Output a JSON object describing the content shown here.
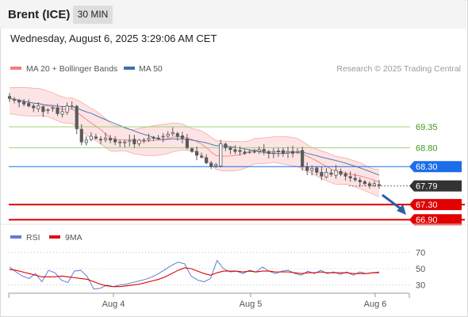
{
  "instrument": "Brent (ICE)",
  "timeframe": "30 MIN",
  "datetime": "Wednesday, August 6, 2025 3:29:06 AM CET",
  "legend": {
    "bollinger": "MA 20 + Bollinger Bands",
    "ma50": "MA 50",
    "credit": "Research © 2025 Trading Central",
    "rsi": "RSI",
    "rsi_ma": "9MA"
  },
  "colors": {
    "candle": "#5a5a5a",
    "bollinger": "#f08080",
    "bollinger_fill": "#fde4e4",
    "ma50": "#3e6fb0",
    "resistance": "#9dd27a",
    "support": "#e00000",
    "pivot": "#1b6ee8",
    "current": "#333333",
    "rsi": "#5b7fd0",
    "rsi_ma": "#e00000",
    "arrow": "#2b5fa5"
  },
  "chart_data": [
    {
      "type": "candlestick",
      "title": "Brent (ICE)",
      "x_tick_labels": [
        "Aug 4",
        "Aug 5",
        "Aug 6"
      ],
      "y_range": [
        66.8,
        70.5
      ],
      "candle_closes": [
        70.1,
        70.05,
        70.0,
        69.95,
        69.9,
        69.85,
        69.9,
        69.75,
        69.8,
        69.85,
        69.7,
        69.75,
        69.9,
        69.9,
        69.3,
        68.95,
        69.0,
        69.1,
        69.05,
        69.0,
        69.05,
        69.0,
        68.95,
        68.95,
        68.95,
        69.0,
        68.9,
        69.0,
        69.0,
        69.05,
        69.05,
        69.05,
        69.1,
        69.15,
        69.2,
        69.1,
        69.05,
        68.8,
        68.7,
        68.6,
        68.55,
        68.4,
        68.3,
        68.35,
        68.9,
        68.8,
        68.75,
        68.7,
        68.7,
        68.65,
        68.7,
        68.7,
        68.75,
        68.7,
        68.65,
        68.7,
        68.7,
        68.65,
        68.7,
        68.65,
        68.7,
        68.3,
        68.2,
        68.25,
        68.15,
        68.05,
        68.15,
        68.1,
        68.2,
        68.1,
        68.05,
        68.0,
        67.95,
        67.9,
        67.85,
        67.8,
        67.85,
        67.8
      ],
      "levels": [
        {
          "value": 69.35,
          "label": "69.35",
          "kind": "resistance"
        },
        {
          "value": 68.8,
          "label": "68.80",
          "kind": "resistance"
        },
        {
          "value": 68.3,
          "label": "68.30",
          "kind": "pivot"
        },
        {
          "value": 67.79,
          "label": "67.79",
          "kind": "current"
        },
        {
          "value": 67.3,
          "label": "67.30",
          "kind": "support"
        },
        {
          "value": 66.9,
          "label": "66.90",
          "kind": "support"
        }
      ],
      "series": [
        {
          "name": "MA 20 + Bollinger Bands"
        },
        {
          "name": "MA 50"
        }
      ]
    },
    {
      "type": "line",
      "y_range": [
        20,
        80
      ],
      "y_tick_labels": [
        "70",
        "50",
        "30"
      ],
      "series": [
        {
          "name": "RSI",
          "values": [
            52,
            46,
            41,
            38,
            44,
            34,
            48,
            45,
            36,
            33,
            47,
            48,
            40,
            25,
            26,
            30,
            28,
            30,
            31,
            33,
            35,
            37,
            40,
            44,
            49,
            54,
            58,
            56,
            41,
            36,
            34,
            38,
            60,
            50,
            46,
            47,
            44,
            48,
            46,
            52,
            47,
            44,
            47,
            48,
            44,
            42,
            47,
            44,
            48,
            44,
            46,
            43,
            46,
            42,
            46,
            44,
            45,
            46
          ]
        },
        {
          "name": "9MA",
          "values": [
            49,
            48,
            46,
            44,
            42,
            40,
            40,
            40,
            41,
            40,
            39,
            38,
            37,
            34,
            31,
            29,
            28,
            28,
            29,
            30,
            31,
            33,
            35,
            37,
            40,
            44,
            48,
            51,
            50,
            47,
            44,
            42,
            45,
            47,
            47,
            47,
            46,
            47,
            46,
            47,
            47,
            46,
            46,
            46,
            45,
            44,
            45,
            45,
            46,
            45,
            45,
            45,
            45,
            44,
            44,
            44,
            45,
            45
          ]
        }
      ]
    }
  ]
}
